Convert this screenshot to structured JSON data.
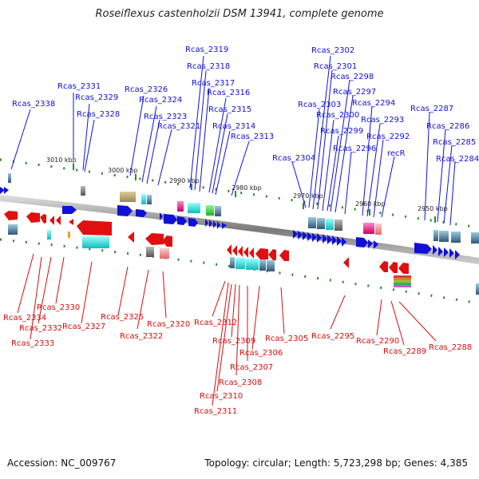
{
  "title": "Roseiflexus castenholzii DSM 13941, complete genome",
  "footer": {
    "accession": "Accession: NC_009767",
    "summary": "Topology: circular; Length: 5,723,298 bp; Genes: 4,385"
  },
  "ticks": [
    "3010 kbp",
    "3000 kbp",
    "2990 kbp",
    "2980 kbp",
    "2970 kbp",
    "2960 kbp",
    "2950 kbp"
  ],
  "forward_labels": [
    "Rcas_2338",
    "Rcas_2331",
    "Rcas_2329",
    "Rcas_2328",
    "Rcas_2326",
    "Rcas_2324",
    "Rcas_2323",
    "Rcas_2321",
    "Rcas_2319",
    "Rcas_2318",
    "Rcas_2317",
    "Rcas_2316",
    "Rcas_2315",
    "Rcas_2314",
    "Rcas_2313",
    "Rcas_2304",
    "Rcas_2303",
    "Rcas_2302",
    "Rcas_2301",
    "Rcas_2300",
    "Rcas_2299",
    "Rcas_2298",
    "Rcas_2297",
    "Rcas_2296",
    "Rcas_2294",
    "Rcas_2293",
    "Rcas_2292",
    "recR",
    "Rcas_2287",
    "Rcas_2286",
    "Rcas_2285",
    "Rcas_2284"
  ],
  "reverse_labels": [
    "Rcas_2334",
    "Rcas_2333",
    "Rcas_2332",
    "Rcas_2330",
    "Rcas_2327",
    "Rcas_2325",
    "Rcas_2322",
    "Rcas_2320",
    "Rcas_2312",
    "Rcas_2311",
    "Rcas_2310",
    "Rcas_2309",
    "Rcas_2308",
    "Rcas_2307",
    "Rcas_2306",
    "Rcas_2305",
    "Rcas_2295",
    "Rcas_2290",
    "Rcas_2289",
    "Rcas_2288"
  ],
  "colors": {
    "forward": "#1010d8",
    "reverse": "#d01010",
    "backbone": "#888888",
    "tick": "#2a8a2a"
  }
}
